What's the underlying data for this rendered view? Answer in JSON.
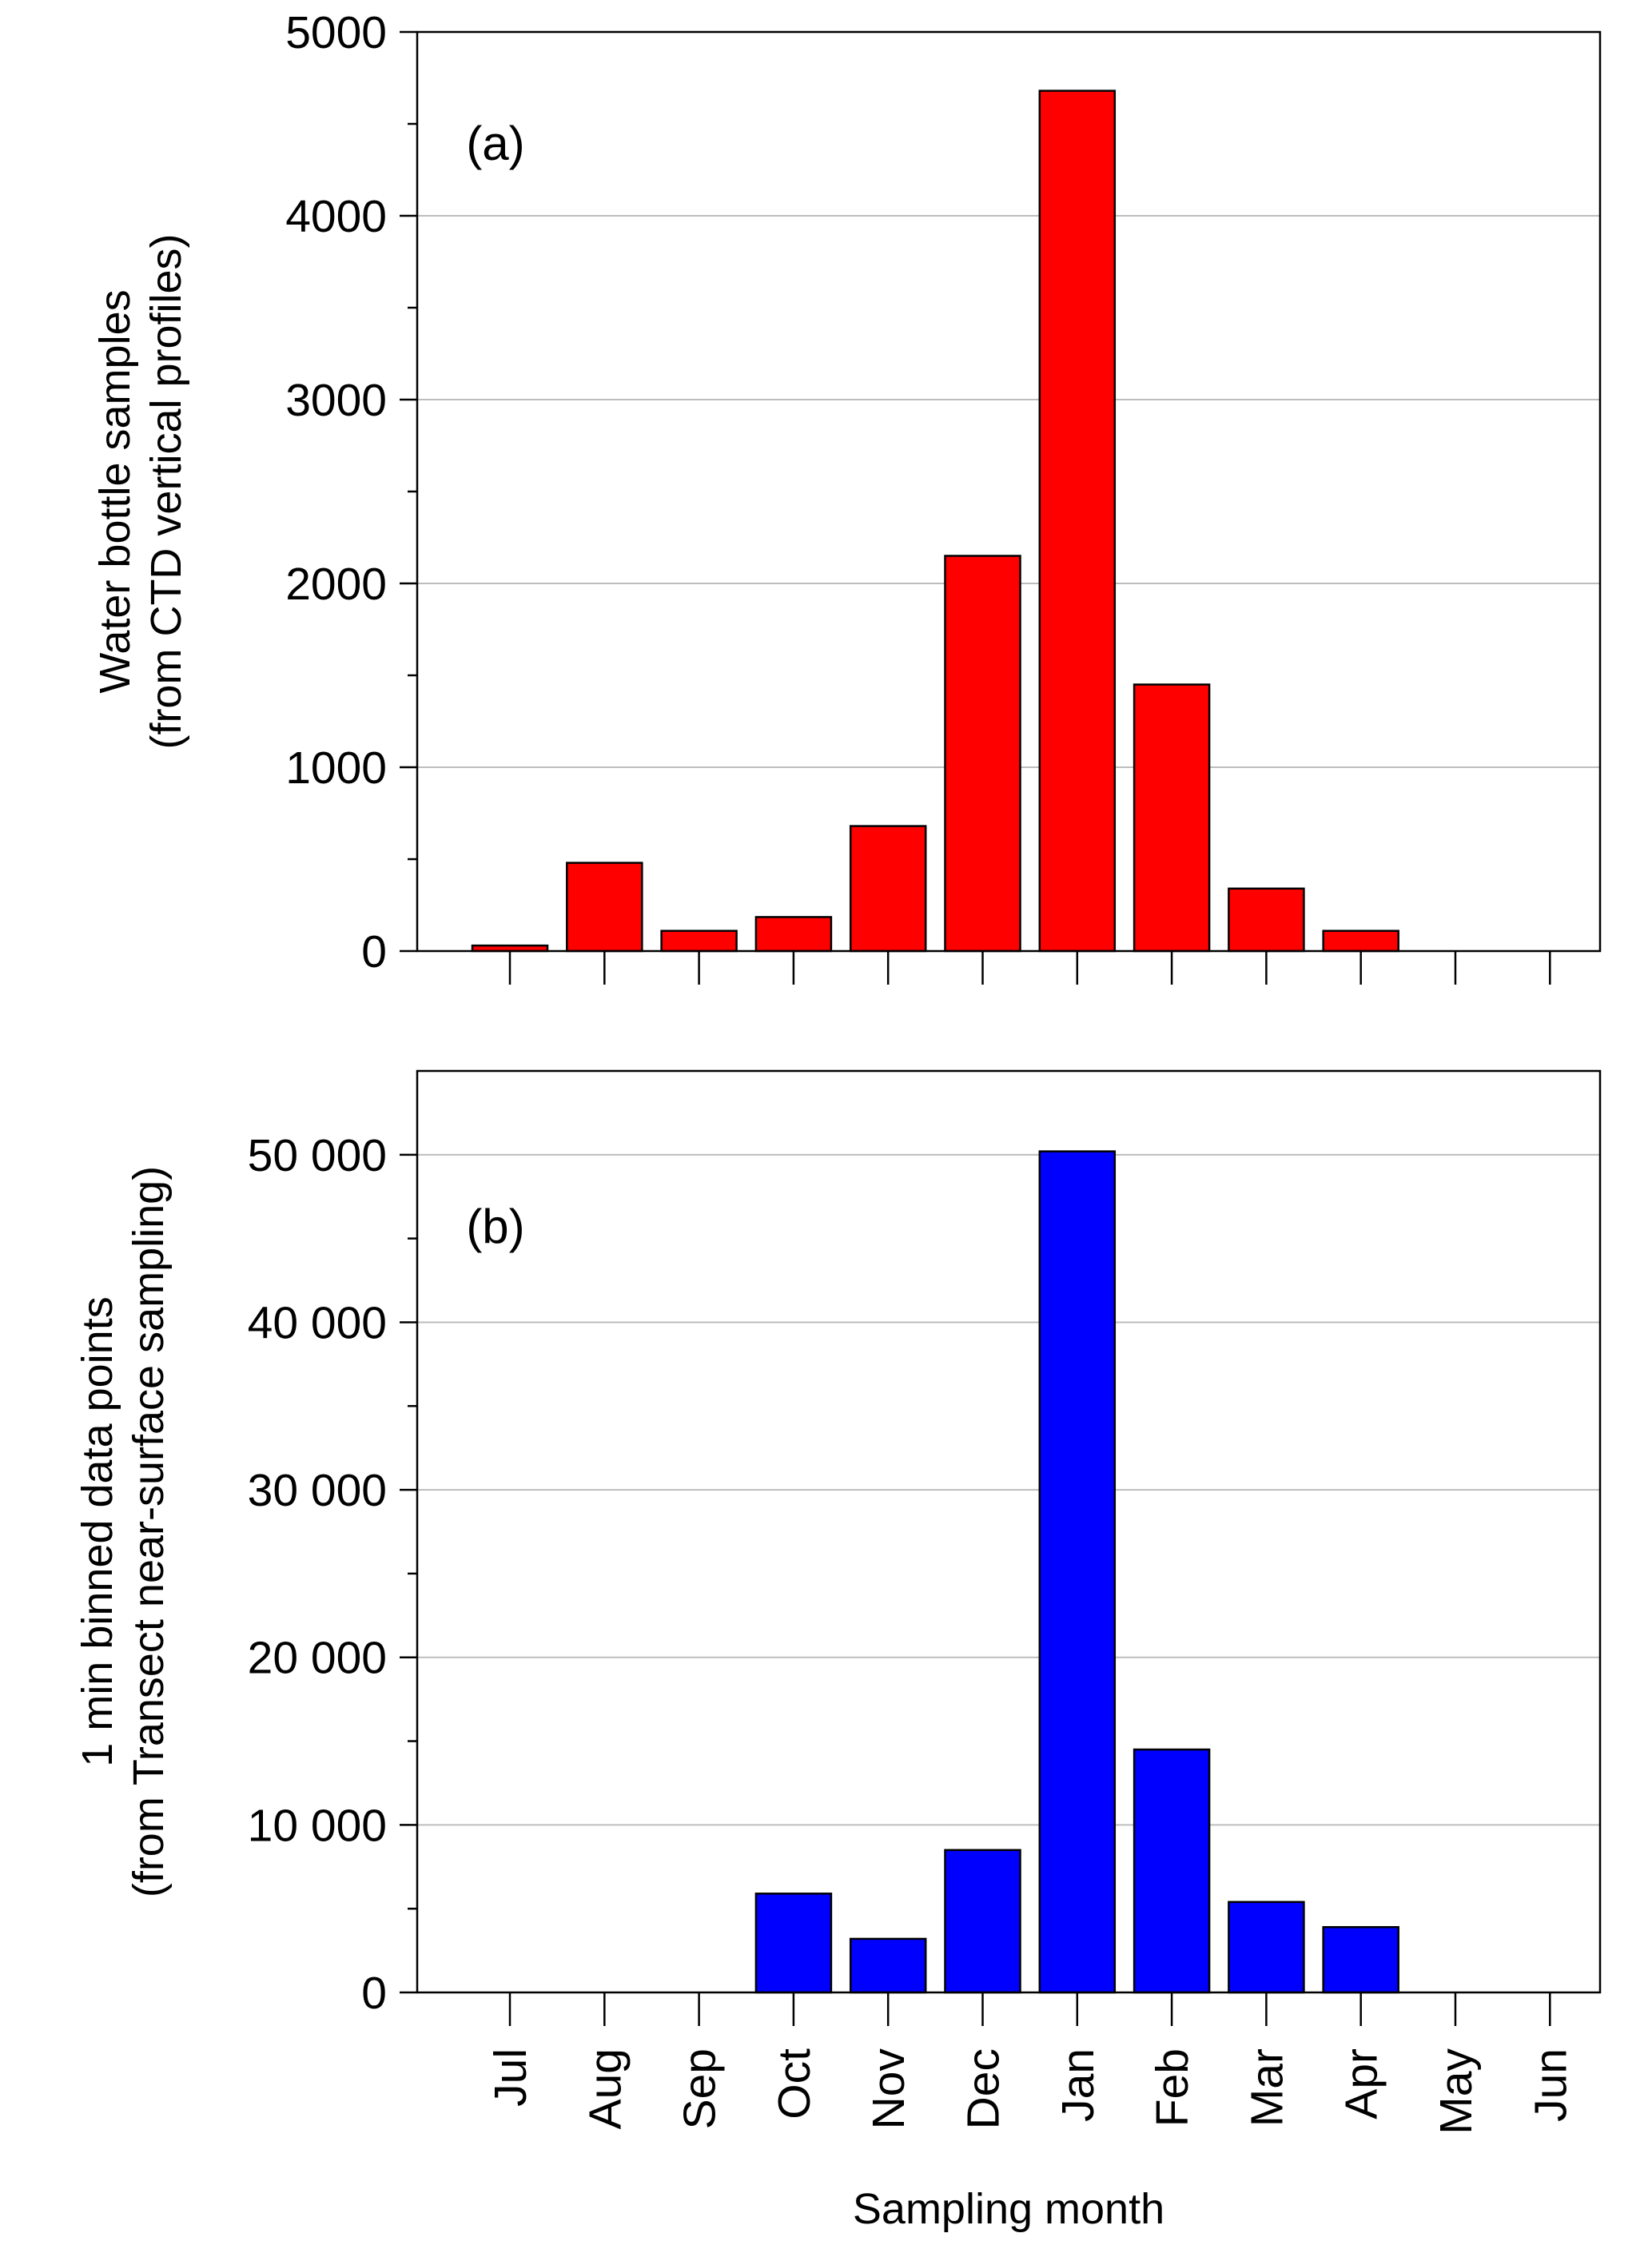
{
  "chart_data": [
    {
      "type": "bar",
      "panel_label": "(a)",
      "categories": [
        "Jul",
        "Aug",
        "Sep",
        "Oct",
        "Nov",
        "Dec",
        "Jan",
        "Feb",
        "Mar",
        "Apr",
        "May",
        "Jun"
      ],
      "values": [
        30,
        480,
        110,
        185,
        680,
        2150,
        4680,
        1450,
        340,
        110,
        0,
        0
      ],
      "ylabel": [
        "Water bottle samples",
        "(from CTD vertical profiles)"
      ],
      "ylim": [
        0,
        5000
      ],
      "yticks": [
        0,
        1000,
        2000,
        3000,
        4000,
        5000
      ],
      "ytick_labels": [
        "0",
        "1000",
        "2000",
        "3000",
        "4000",
        "5000"
      ],
      "bar_color": "#ff0000",
      "grid": "horizontal"
    },
    {
      "type": "bar",
      "panel_label": "(b)",
      "categories": [
        "Jul",
        "Aug",
        "Sep",
        "Oct",
        "Nov",
        "Dec",
        "Jan",
        "Feb",
        "Mar",
        "Apr",
        "May",
        "Jun"
      ],
      "values": [
        0,
        0,
        0,
        5900,
        3200,
        8500,
        50200,
        14500,
        5400,
        3900,
        0,
        0
      ],
      "ylabel": [
        "1 min binned data points",
        "(from Transect near-surface sampling)"
      ],
      "xlabel": "Sampling month",
      "ylim": [
        0,
        55000
      ],
      "yticks": [
        0,
        10000,
        20000,
        30000,
        40000,
        50000
      ],
      "ytick_labels": [
        "0",
        "10 000",
        "20 000",
        "30 000",
        "40 000",
        "50 000"
      ],
      "bar_color": "#0000ff",
      "grid": "horizontal"
    }
  ]
}
